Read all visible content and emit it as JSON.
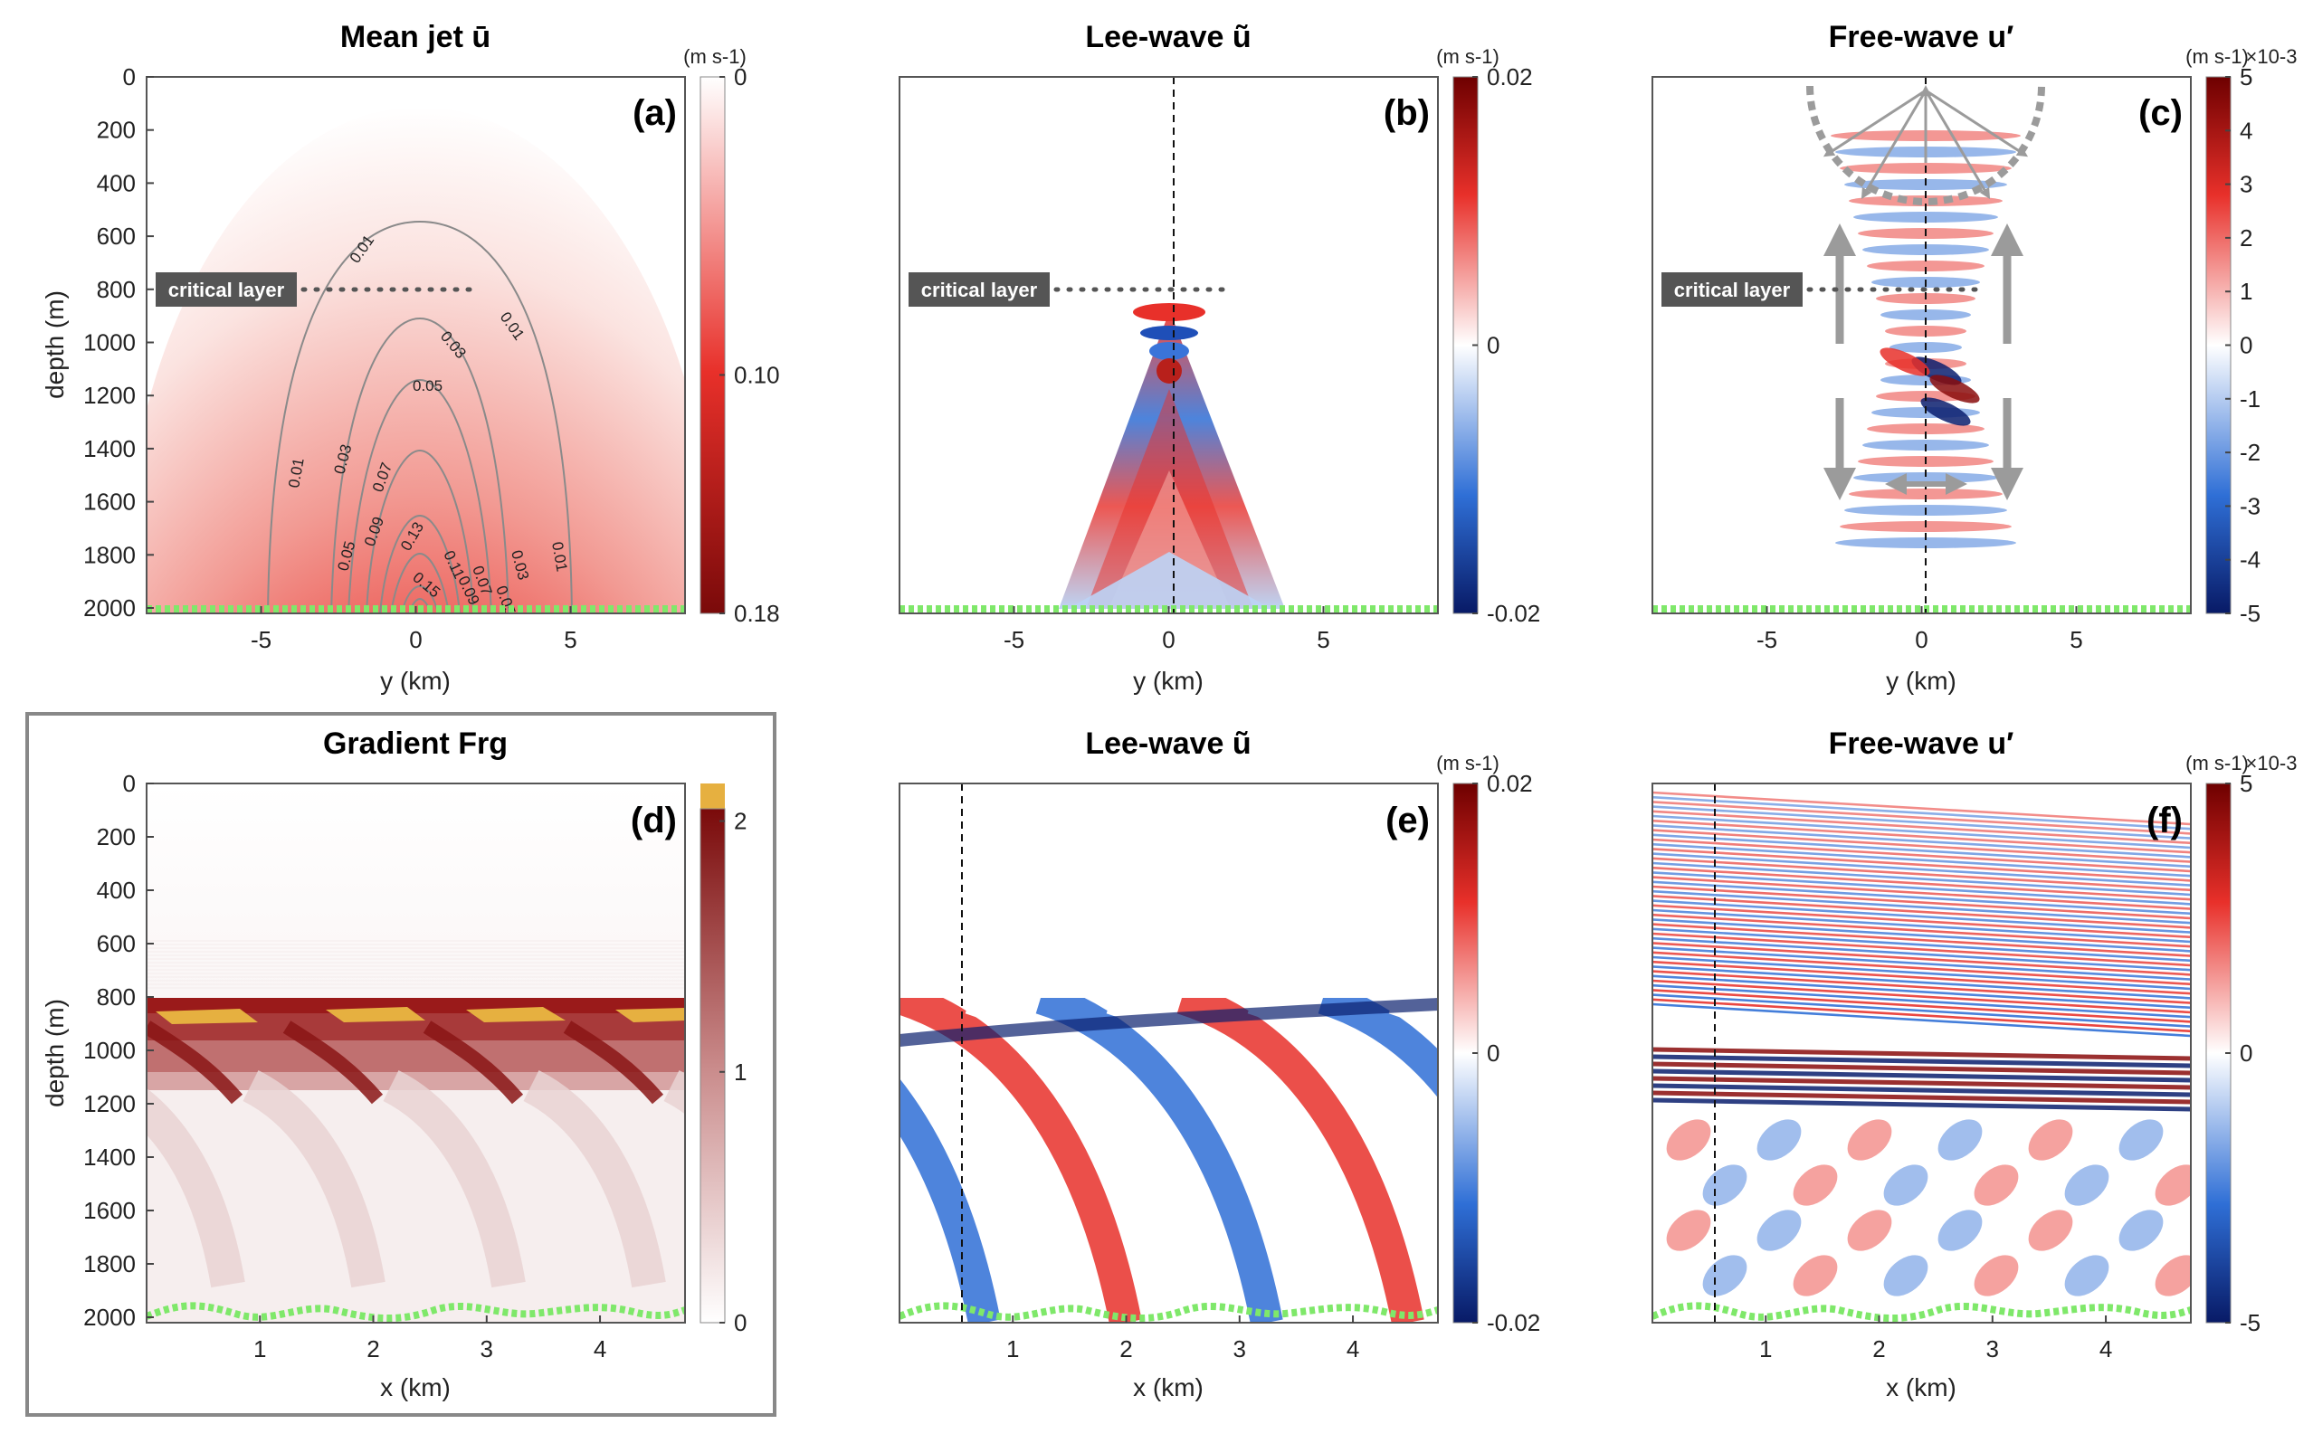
{
  "colors": {
    "red_dark": "#7a0a0a",
    "red": "#e8302a",
    "blue": "#2f6fd6",
    "blue_dark": "#0a1f6e",
    "green_dots": "#7fe86a",
    "orange": "#e6b040",
    "gray": "#9b9b9b"
  },
  "chart_data": [
    {
      "id": "a",
      "type": "heatmap",
      "title": "Mean jet ū",
      "panel_label": "(a)",
      "xlabel": "y (km)",
      "ylabel": "depth (m)",
      "xlim": [
        -8.7,
        8.7
      ],
      "ylim": [
        0,
        2000
      ],
      "xticks": [
        "-5",
        "0",
        "5"
      ],
      "yticks": [
        "0",
        "200",
        "400",
        "600",
        "800",
        "1000",
        "1200",
        "1400",
        "1600",
        "1800",
        "2000"
      ],
      "colorbar": {
        "unit": "(m s-1)",
        "ticks": [
          "0",
          "0.10",
          "0.18"
        ],
        "range": [
          0,
          0.18
        ]
      },
      "contours": [
        {
          "level": 0.01,
          "label": "0.01"
        },
        {
          "level": 0.03,
          "label": "0.03"
        },
        {
          "level": 0.05,
          "label": "0.05"
        },
        {
          "level": 0.07,
          "label": "0.07"
        },
        {
          "level": 0.09,
          "label": "0.09"
        },
        {
          "level": 0.11,
          "label": "0.11"
        },
        {
          "level": 0.13,
          "label": "0.13"
        },
        {
          "level": 0.15,
          "label": "0.15"
        }
      ],
      "annotation": {
        "text": "critical layer",
        "depth": 800
      }
    },
    {
      "id": "b",
      "type": "heatmap",
      "title": "Lee-wave ũ",
      "panel_label": "(b)",
      "xlabel": "y (km)",
      "xlim": [
        -8.7,
        8.7
      ],
      "ylim": [
        0,
        2000
      ],
      "xticks": [
        "-5",
        "0",
        "5"
      ],
      "colorbar": {
        "unit": "(m s-1)",
        "ticks": [
          "0.02",
          "0",
          "-0.02"
        ],
        "range": [
          -0.02,
          0.02
        ]
      },
      "annotation": {
        "text": "critical layer",
        "depth": 800
      }
    },
    {
      "id": "c",
      "type": "heatmap",
      "title": "Free-wave u′",
      "panel_label": "(c)",
      "xlabel": "y (km)",
      "xlim": [
        -8.7,
        8.7
      ],
      "ylim": [
        0,
        2000
      ],
      "xticks": [
        "-5",
        "0",
        "5"
      ],
      "colorbar": {
        "unit": "(m s-1)",
        "scale": "×10-3",
        "ticks": [
          "5",
          "4",
          "3",
          "2",
          "1",
          "0",
          "-1",
          "-2",
          "-3",
          "-4",
          "-5"
        ],
        "range": [
          -5,
          5
        ]
      },
      "annotation": {
        "text": "critical layer",
        "depth": 800
      }
    },
    {
      "id": "d",
      "type": "heatmap",
      "title": "Gradient Frg",
      "panel_label": "(d)",
      "xlabel": "x (km)",
      "ylabel": "depth (m)",
      "xlim": [
        0,
        4.75
      ],
      "ylim": [
        0,
        2000
      ],
      "xticks": [
        "1",
        "2",
        "3",
        "4"
      ],
      "yticks": [
        "0",
        "200",
        "400",
        "600",
        "800",
        "1000",
        "1200",
        "1400",
        "1600",
        "1800",
        "2000"
      ],
      "colorbar": {
        "ticks": [
          "2",
          "1",
          "0"
        ],
        "range": [
          0,
          2.15
        ]
      }
    },
    {
      "id": "e",
      "type": "heatmap",
      "title": "Lee-wave ũ",
      "panel_label": "(e)",
      "xlabel": "x (km)",
      "xlim": [
        0,
        4.75
      ],
      "ylim": [
        0,
        2000
      ],
      "xticks": [
        "1",
        "2",
        "3",
        "4"
      ],
      "colorbar": {
        "unit": "(m s-1)",
        "ticks": [
          "0.02",
          "0",
          "-0.02"
        ],
        "range": [
          -0.02,
          0.02
        ]
      }
    },
    {
      "id": "f",
      "type": "heatmap",
      "title": "Free-wave u′",
      "panel_label": "(f)",
      "xlabel": "x (km)",
      "xlim": [
        0,
        4.75
      ],
      "ylim": [
        0,
        2000
      ],
      "xticks": [
        "1",
        "2",
        "3",
        "4"
      ],
      "colorbar": {
        "unit": "(m s-1)",
        "scale": "×10-3",
        "ticks": [
          "5",
          "0",
          "-5"
        ],
        "range": [
          -5,
          5
        ]
      }
    }
  ]
}
